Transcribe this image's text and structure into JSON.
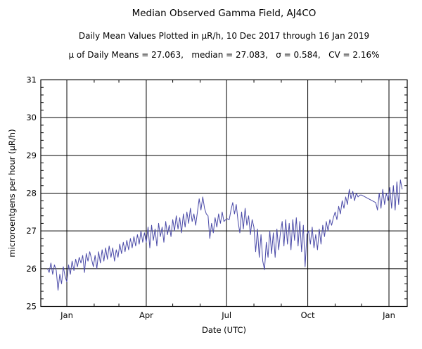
{
  "header": {
    "title": "Median Observed Gamma Field, AJ4CO",
    "subtitle": "Daily Mean Values Plotted in μR/h, 10 Dec 2017 through 16 Jan 2019",
    "stats": "μ of Daily Means = 27.063,   median = 27.083,   σ = 0.584,   CV = 2.16%"
  },
  "chart_data": {
    "type": "line",
    "title": "Median Observed Gamma Field, AJ4CO",
    "subtitle": "Daily Mean Values Plotted in μR/h, 10 Dec 2017 through 16 Jan 2019",
    "annotation": "μ of Daily Means = 27.063,   median = 27.083,   σ = 0.584,   CV = 2.16%",
    "xlabel": "Date (UTC)",
    "ylabel": "microroentgens per hour (μR/h)",
    "x_unit": "days since 10 Dec 2017",
    "x_domain": [
      -7.5,
      407.7
    ],
    "ylim": [
      25,
      31
    ],
    "grid": true,
    "line_color": "#4b4ba8",
    "y_major_ticks": [
      25,
      26,
      27,
      28,
      29,
      30,
      31
    ],
    "y_minor_step": 0.2,
    "x_major_ticks": [
      {
        "day": 22,
        "label": "Jan"
      },
      {
        "day": 112,
        "label": "Apr"
      },
      {
        "day": 203,
        "label": "Jul"
      },
      {
        "day": 295,
        "label": "Oct"
      },
      {
        "day": 387,
        "label": "Jan"
      }
    ],
    "x_minor_tick_days": [
      53,
      81,
      142,
      173,
      234,
      265,
      326,
      356
    ],
    "points": [
      [
        0,
        26.0
      ],
      [
        2,
        25.9
      ],
      [
        4,
        26.15
      ],
      [
        6,
        25.85
      ],
      [
        8,
        26.1
      ],
      [
        10,
        25.95
      ],
      [
        12,
        25.43
      ],
      [
        14,
        25.85
      ],
      [
        16,
        25.6
      ],
      [
        18,
        26.05
      ],
      [
        20,
        25.8
      ],
      [
        22,
        25.65
      ],
      [
        24,
        26.1
      ],
      [
        26,
        25.85
      ],
      [
        28,
        26.2
      ],
      [
        30,
        25.95
      ],
      [
        32,
        26.25
      ],
      [
        34,
        26.05
      ],
      [
        36,
        26.3
      ],
      [
        38,
        26.15
      ],
      [
        40,
        26.35
      ],
      [
        42,
        25.9
      ],
      [
        44,
        26.4
      ],
      [
        46,
        26.2
      ],
      [
        48,
        26.45
      ],
      [
        50,
        26.25
      ],
      [
        52,
        26.05
      ],
      [
        54,
        26.35
      ],
      [
        56,
        26.0
      ],
      [
        58,
        26.45
      ],
      [
        60,
        26.15
      ],
      [
        62,
        26.5
      ],
      [
        64,
        26.2
      ],
      [
        66,
        26.55
      ],
      [
        68,
        26.25
      ],
      [
        70,
        26.6
      ],
      [
        72,
        26.3
      ],
      [
        74,
        26.55
      ],
      [
        76,
        26.2
      ],
      [
        78,
        26.5
      ],
      [
        80,
        26.3
      ],
      [
        82,
        26.65
      ],
      [
        84,
        26.4
      ],
      [
        86,
        26.7
      ],
      [
        88,
        26.45
      ],
      [
        90,
        26.75
      ],
      [
        92,
        26.5
      ],
      [
        94,
        26.8
      ],
      [
        96,
        26.55
      ],
      [
        98,
        26.85
      ],
      [
        100,
        26.6
      ],
      [
        102,
        26.9
      ],
      [
        104,
        26.65
      ],
      [
        106,
        27.0
      ],
      [
        108,
        26.7
      ],
      [
        110,
        26.95
      ],
      [
        112,
        26.7
      ],
      [
        114,
        27.1
      ],
      [
        116,
        26.55
      ],
      [
        118,
        27.15
      ],
      [
        120,
        26.75
      ],
      [
        122,
        27.05
      ],
      [
        124,
        26.6
      ],
      [
        126,
        27.2
      ],
      [
        128,
        26.85
      ],
      [
        130,
        27.1
      ],
      [
        132,
        26.7
      ],
      [
        134,
        27.25
      ],
      [
        136,
        26.9
      ],
      [
        138,
        27.15
      ],
      [
        140,
        26.85
      ],
      [
        142,
        27.3
      ],
      [
        144,
        27.0
      ],
      [
        146,
        27.4
      ],
      [
        148,
        27.05
      ],
      [
        150,
        27.35
      ],
      [
        152,
        26.95
      ],
      [
        154,
        27.45
      ],
      [
        156,
        27.1
      ],
      [
        158,
        27.5
      ],
      [
        160,
        27.2
      ],
      [
        162,
        27.6
      ],
      [
        164,
        27.25
      ],
      [
        166,
        27.45
      ],
      [
        168,
        27.15
      ],
      [
        170,
        27.5
      ],
      [
        172,
        27.85
      ],
      [
        174,
        27.55
      ],
      [
        176,
        27.9
      ],
      [
        178,
        27.6
      ],
      [
        180,
        27.45
      ],
      [
        182,
        27.4
      ],
      [
        184,
        26.8
      ],
      [
        186,
        27.2
      ],
      [
        188,
        26.95
      ],
      [
        190,
        27.35
      ],
      [
        192,
        27.1
      ],
      [
        194,
        27.45
      ],
      [
        196,
        27.2
      ],
      [
        198,
        27.5
      ],
      [
        200,
        27.25
      ],
      [
        202,
        27.3
      ],
      [
        204,
        27.32
      ],
      [
        206,
        27.3
      ],
      [
        208,
        27.55
      ],
      [
        210,
        27.75
      ],
      [
        212,
        27.45
      ],
      [
        214,
        27.7
      ],
      [
        216,
        27.25
      ],
      [
        218,
        26.95
      ],
      [
        220,
        27.5
      ],
      [
        222,
        27.05
      ],
      [
        224,
        27.6
      ],
      [
        226,
        27.15
      ],
      [
        228,
        27.4
      ],
      [
        230,
        26.9
      ],
      [
        232,
        27.3
      ],
      [
        234,
        27.1
      ],
      [
        236,
        26.45
      ],
      [
        238,
        27.05
      ],
      [
        240,
        26.3
      ],
      [
        242,
        26.9
      ],
      [
        244,
        26.2
      ],
      [
        246,
        25.97
      ],
      [
        248,
        26.7
      ],
      [
        250,
        26.3
      ],
      [
        252,
        27.0
      ],
      [
        254,
        26.4
      ],
      [
        256,
        26.95
      ],
      [
        258,
        26.3
      ],
      [
        260,
        27.05
      ],
      [
        262,
        26.5
      ],
      [
        264,
        26.95
      ],
      [
        266,
        27.25
      ],
      [
        268,
        26.6
      ],
      [
        270,
        27.3
      ],
      [
        272,
        26.65
      ],
      [
        274,
        27.2
      ],
      [
        276,
        26.5
      ],
      [
        278,
        27.3
      ],
      [
        280,
        26.75
      ],
      [
        282,
        27.35
      ],
      [
        284,
        26.6
      ],
      [
        286,
        27.25
      ],
      [
        288,
        26.45
      ],
      [
        290,
        27.15
      ],
      [
        292,
        26.05
      ],
      [
        294,
        26.9
      ],
      [
        296,
        27.0
      ],
      [
        298,
        26.65
      ],
      [
        300,
        27.1
      ],
      [
        302,
        26.55
      ],
      [
        304,
        26.9
      ],
      [
        306,
        26.5
      ],
      [
        308,
        27.05
      ],
      [
        310,
        26.65
      ],
      [
        312,
        27.15
      ],
      [
        314,
        26.85
      ],
      [
        316,
        27.25
      ],
      [
        318,
        27.0
      ],
      [
        320,
        27.3
      ],
      [
        322,
        27.15
      ],
      [
        324,
        27.35
      ],
      [
        326,
        27.5
      ],
      [
        328,
        27.3
      ],
      [
        330,
        27.65
      ],
      [
        332,
        27.45
      ],
      [
        334,
        27.8
      ],
      [
        336,
        27.6
      ],
      [
        338,
        27.9
      ],
      [
        340,
        27.7
      ],
      [
        342,
        28.1
      ],
      [
        344,
        27.85
      ],
      [
        346,
        28.05
      ],
      [
        348,
        27.8
      ],
      [
        350,
        28.0
      ],
      [
        352,
        27.9
      ],
      [
        354,
        27.95
      ],
      [
        356,
        27.95
      ],
      [
        372,
        27.75
      ],
      [
        374,
        27.55
      ],
      [
        376,
        28.0
      ],
      [
        378,
        27.6
      ],
      [
        380,
        28.1
      ],
      [
        382,
        27.7
      ],
      [
        384,
        28.0
      ],
      [
        386,
        27.8
      ],
      [
        388,
        28.15
      ],
      [
        390,
        27.6
      ],
      [
        392,
        28.2
      ],
      [
        394,
        27.55
      ],
      [
        396,
        28.3
      ],
      [
        398,
        27.7
      ],
      [
        400,
        28.35
      ],
      [
        402,
        28.1
      ]
    ]
  }
}
